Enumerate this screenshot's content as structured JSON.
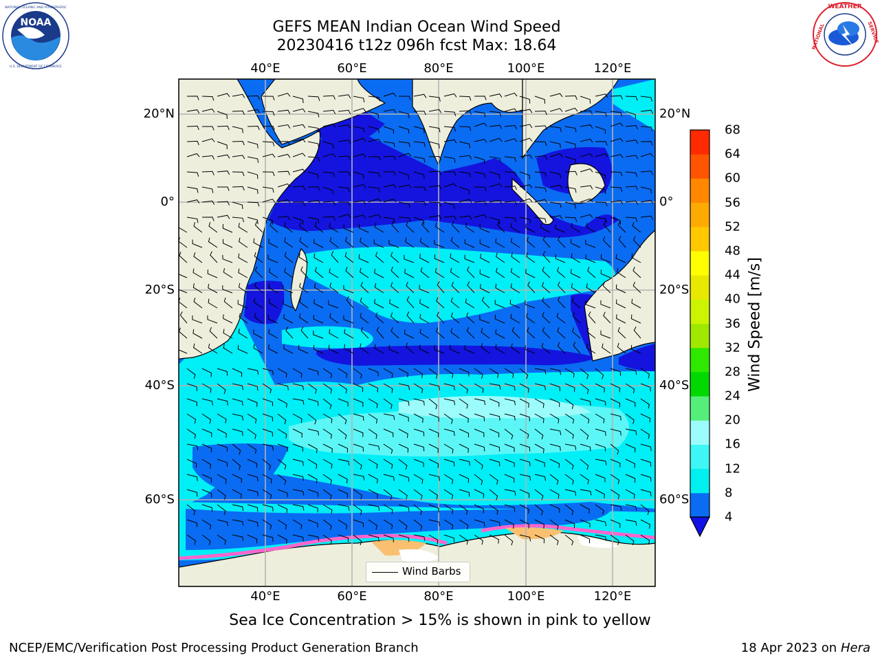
{
  "header": {
    "title_line1": "GEFS MEAN Indian Ocean Wind Speed",
    "title_line2": "20230416 t12z 096h fcst   Max: 18.64"
  },
  "logos": {
    "left": {
      "name": "NOAA",
      "ring_text": "NATIONAL OCEANIC AND ATMOSPHERIC ADMINISTRATION · U.S. DEPARTMENT OF COMMERCE"
    },
    "right": {
      "name": "NATIONAL WEATHER SERVICE"
    }
  },
  "map": {
    "lon_labels": [
      "40°E",
      "60°E",
      "80°E",
      "100°E",
      "120°E"
    ],
    "lat_labels": [
      "20°N",
      "0°",
      "20°S",
      "40°S",
      "60°S"
    ],
    "lon_range": [
      20,
      130
    ],
    "lat_range": [
      -75,
      28
    ],
    "colors": {
      "land": "#eeeedd",
      "wind_4_8": "#0a6cf2",
      "wind_0_4": "#1414de",
      "wind_8_12": "#00eef6",
      "wind_12_16": "#5cf6f6",
      "sea_ice": "#ff66cc",
      "grid": "#b4b4b4"
    }
  },
  "legend": {
    "label": "Wind Barbs"
  },
  "colorbar": {
    "label": "Wind Speed [m/s]",
    "ticks": [
      "4",
      "8",
      "12",
      "16",
      "20",
      "24",
      "28",
      "32",
      "36",
      "40",
      "44",
      "48",
      "52",
      "56",
      "60",
      "64",
      "68"
    ],
    "colors": [
      "#0a6cf2",
      "#00f0f0",
      "#3ef6f6",
      "#9cfcfc",
      "#56ee7a",
      "#00d800",
      "#2ee800",
      "#a0e800",
      "#ccf400",
      "#e8e800",
      "#ffff00",
      "#ffc800",
      "#ffaa00",
      "#ff8800",
      "#ff5500",
      "#ff2a00"
    ],
    "under_color": "#1212e6"
  },
  "note": "Sea Ice Concentration > 15% is shown in pink to yellow",
  "footer": {
    "left": "NCEP/EMC/Verification Post Processing Product Generation Branch",
    "date": "18 Apr 2023 on ",
    "machine": "Hera"
  }
}
